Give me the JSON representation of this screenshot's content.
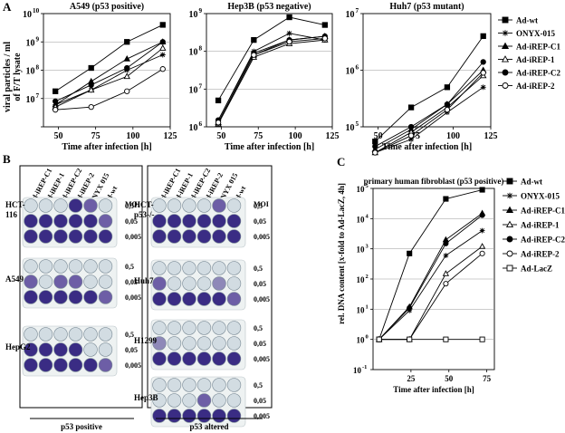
{
  "panel_labels": {
    "a": "A",
    "b": "B",
    "c": "C"
  },
  "ylabel_a": [
    "viral particles / ml",
    "of F/T lysate"
  ],
  "legend_a": {
    "series": [
      "Ad-wt",
      "ONYX-015",
      "Ad-iREP-C1",
      "Ad-iREP-1",
      "Ad-iREP-C2",
      "Ad-iREP-2"
    ],
    "markers": [
      "square-filled",
      "star",
      "triangle-filled",
      "triangle-open",
      "circle-filled",
      "circle-open"
    ]
  },
  "legend_c": {
    "series": [
      "Ad-wt",
      "ONYX-015",
      "Ad-iREP-C1",
      "Ad-iREP-1",
      "Ad-iREP-C2",
      "Ad-iREP-2",
      "Ad-LacZ"
    ],
    "markers": [
      "square-filled",
      "star",
      "triangle-filled",
      "triangle-open",
      "circle-filled",
      "circle-open",
      "square-open"
    ]
  },
  "chart_data": [
    {
      "type": "line",
      "title": "A549 (p53 positive)",
      "xlabel": "Time after infection [h]",
      "ylabel": "viral particles / ml of F/T lysate",
      "yscale": "log",
      "xlim": [
        40,
        125
      ],
      "ylim_exp": [
        6,
        10
      ],
      "xticks": [
        50,
        75,
        100,
        125
      ],
      "ytick_labels": [
        "10",
        "10",
        "10",
        "10"
      ],
      "ytick_exps": [
        "7",
        "8",
        "9",
        "10"
      ],
      "x": [
        48,
        72,
        96,
        120
      ],
      "series": [
        {
          "name": "Ad-wt",
          "values": [
            18000000.0,
            120000000.0,
            1000000000.0,
            4000000000.0
          ]
        },
        {
          "name": "ONYX-015",
          "values": [
            6000000.0,
            20000000.0,
            100000000.0,
            350000000.0
          ]
        },
        {
          "name": "Ad-iREP-C1",
          "values": [
            6000000.0,
            40000000.0,
            250000000.0,
            1000000000.0
          ]
        },
        {
          "name": "Ad-iREP-1",
          "values": [
            5000000.0,
            20000000.0,
            60000000.0,
            600000000.0
          ]
        },
        {
          "name": "Ad-iREP-C2",
          "values": [
            8000000.0,
            30000000.0,
            120000000.0,
            1000000000.0
          ]
        },
        {
          "name": "Ad-iREP-2",
          "values": [
            4000000.0,
            5000000.0,
            18000000.0,
            110000000.0
          ]
        }
      ]
    },
    {
      "type": "line",
      "title": "Hep3B (p53 negative)",
      "xlabel": "Time after infection [h]",
      "yscale": "log",
      "xlim": [
        40,
        125
      ],
      "ylim_exp": [
        6,
        9
      ],
      "xticks": [
        50,
        75,
        100,
        125
      ],
      "ytick_labels": [
        "10",
        "10",
        "10",
        "10"
      ],
      "ytick_exps": [
        "6",
        "7",
        "8",
        "9"
      ],
      "x": [
        48,
        72,
        96,
        120
      ],
      "series": [
        {
          "name": "Ad-wt",
          "values": [
            5000000.0,
            200000000.0,
            800000000.0,
            500000000.0
          ]
        },
        {
          "name": "ONYX-015",
          "values": [
            1500000.0,
            100000000.0,
            300000000.0,
            200000000.0
          ]
        },
        {
          "name": "Ad-iREP-C1",
          "values": [
            1300000.0,
            80000000.0,
            200000000.0,
            250000000.0
          ]
        },
        {
          "name": "Ad-iREP-1",
          "values": [
            1200000.0,
            70000000.0,
            160000000.0,
            200000000.0
          ]
        },
        {
          "name": "Ad-iREP-C2",
          "values": [
            1500000.0,
            90000000.0,
            200000000.0,
            250000000.0
          ]
        },
        {
          "name": "Ad-iREP-2",
          "values": [
            1300000.0,
            80000000.0,
            180000000.0,
            220000000.0
          ]
        }
      ]
    },
    {
      "type": "line",
      "title": "Huh7 (p53 mutant)",
      "xlabel": "Time after infection [h]",
      "yscale": "log",
      "xlim": [
        40,
        125
      ],
      "ylim_exp": [
        5,
        7
      ],
      "xticks": [
        50,
        75,
        100,
        125
      ],
      "ytick_labels": [
        "10",
        "10",
        "10"
      ],
      "ytick_exps": [
        "5",
        "6",
        "7"
      ],
      "x": [
        48,
        72,
        96,
        120
      ],
      "series": [
        {
          "name": "Ad-wt",
          "values": [
            55000.0,
            220000.0,
            500000.0,
            4000000.0
          ]
        },
        {
          "name": "ONYX-015",
          "values": [
            35000.0,
            60000.0,
            180000.0,
            500000.0
          ]
        },
        {
          "name": "Ad-iREP-C1",
          "values": [
            40000.0,
            90000.0,
            250000.0,
            1000000.0
          ]
        },
        {
          "name": "Ad-iREP-1",
          "values": [
            35000.0,
            80000.0,
            220000.0,
            800000.0
          ]
        },
        {
          "name": "Ad-iREP-C2",
          "values": [
            45000.0,
            100000.0,
            250000.0,
            1400000.0
          ]
        },
        {
          "name": "Ad-iREP-2",
          "values": [
            35000.0,
            70000.0,
            200000.0,
            900000.0
          ]
        }
      ]
    },
    {
      "type": "line",
      "title": "primary human fibroblast (p53 positive)",
      "xlabel": "Time after infection [h]",
      "ylabel": "rel. DNA content [x-fold to Ad-LacZ, 4h]",
      "yscale": "log",
      "xlim": [
        0,
        80
      ],
      "ylim_exp": [
        -1,
        5
      ],
      "xticks": [
        25,
        50,
        75
      ],
      "ytick_labels": [
        "10",
        "10",
        "10",
        "10",
        "10",
        "10",
        "10"
      ],
      "ytick_exps": [
        "-1",
        "0",
        "1",
        "2",
        "3",
        "4",
        "5"
      ],
      "x": [
        4,
        24,
        48,
        72
      ],
      "series": [
        {
          "name": "Ad-wt",
          "values": [
            1,
            700,
            45000,
            90000
          ]
        },
        {
          "name": "ONYX-015",
          "values": [
            1,
            9,
            600,
            4000
          ]
        },
        {
          "name": "Ad-iREP-C1",
          "values": [
            1,
            12,
            2000,
            15000
          ]
        },
        {
          "name": "Ad-iREP-1",
          "values": [
            1,
            1,
            150,
            1200
          ]
        },
        {
          "name": "Ad-iREP-C2",
          "values": [
            1,
            11,
            1500,
            13000
          ]
        },
        {
          "name": "Ad-iREP-2",
          "values": [
            1,
            1,
            70,
            700
          ]
        },
        {
          "name": "Ad-LacZ",
          "values": [
            1,
            1,
            1,
            1
          ]
        }
      ]
    }
  ],
  "plates": {
    "left": {
      "columns": [
        "Ad-iREP-C1",
        "Ad-iREP-1",
        "Ad-iREP-C2",
        "Ad-iREP-2",
        "ONYX 015",
        "Ad-wt"
      ],
      "moi_label": "MOI",
      "footer": "p53 positive",
      "rows": [
        {
          "cell_line": "HCT-\n116",
          "moi": [
            "0,5",
            "0,05",
            "0,005"
          ],
          "wells": [
            [
              0,
              0,
              0,
              2,
              3,
              0
            ],
            [
              2,
              2,
              2,
              2,
              2,
              3
            ],
            [
              2,
              2,
              2,
              2,
              2,
              2
            ]
          ]
        },
        {
          "cell_line": "A549",
          "moi": [
            "0,5",
            "0,05",
            "0,005"
          ],
          "wells": [
            [
              0,
              0,
              0,
              0,
              0,
              0
            ],
            [
              3,
              0,
              3,
              3,
              0,
              0
            ],
            [
              2,
              2,
              2,
              2,
              2,
              3
            ]
          ]
        },
        {
          "cell_line": "HepG2",
          "moi": [
            "0,5",
            "0,05",
            "0,005"
          ],
          "wells": [
            [
              0,
              0,
              0,
              0,
              0,
              0
            ],
            [
              2,
              2,
              2,
              2,
              0,
              0
            ],
            [
              2,
              2,
              2,
              2,
              2,
              3
            ]
          ]
        }
      ]
    },
    "right": {
      "columns": [
        "Ad-iREP-C1",
        "Ad-iREP-1",
        "Ad-iREP-C2",
        "Ad-iREP-2",
        "ONYX 015",
        "Ad-wt"
      ],
      "moi_label": "MOI",
      "footer": "p53 altered",
      "rows": [
        {
          "cell_line": "HCT-\np53-/-",
          "moi": [
            "0,5",
            "0,05",
            "0,005"
          ],
          "wells": [
            [
              0,
              0,
              0,
              0,
              3,
              0
            ],
            [
              2,
              2,
              2,
              2,
              2,
              2
            ],
            [
              2,
              2,
              2,
              2,
              2,
              2
            ]
          ]
        },
        {
          "cell_line": "Huh7",
          "moi": [
            "0,5",
            "0,05",
            "0,005"
          ],
          "wells": [
            [
              0,
              0,
              0,
              0,
              0,
              0
            ],
            [
              3,
              0,
              0,
              0,
              1,
              0
            ],
            [
              2,
              2,
              2,
              2,
              2,
              3
            ]
          ]
        },
        {
          "cell_line": "H1299",
          "moi": [
            "0,5",
            "0,05",
            "0,005"
          ],
          "wells": [
            [
              0,
              0,
              0,
              0,
              0,
              0
            ],
            [
              1,
              0,
              0,
              0,
              0,
              0
            ],
            [
              2,
              2,
              2,
              2,
              2,
              2
            ]
          ]
        },
        {
          "cell_line": "Hep3B",
          "moi": [
            "0,5",
            "0,05",
            "0,005"
          ],
          "wells": [
            [
              0,
              0,
              0,
              0,
              0,
              0
            ],
            [
              0,
              0,
              0,
              3,
              0,
              0
            ],
            [
              2,
              2,
              2,
              2,
              2,
              2
            ]
          ]
        }
      ]
    }
  }
}
